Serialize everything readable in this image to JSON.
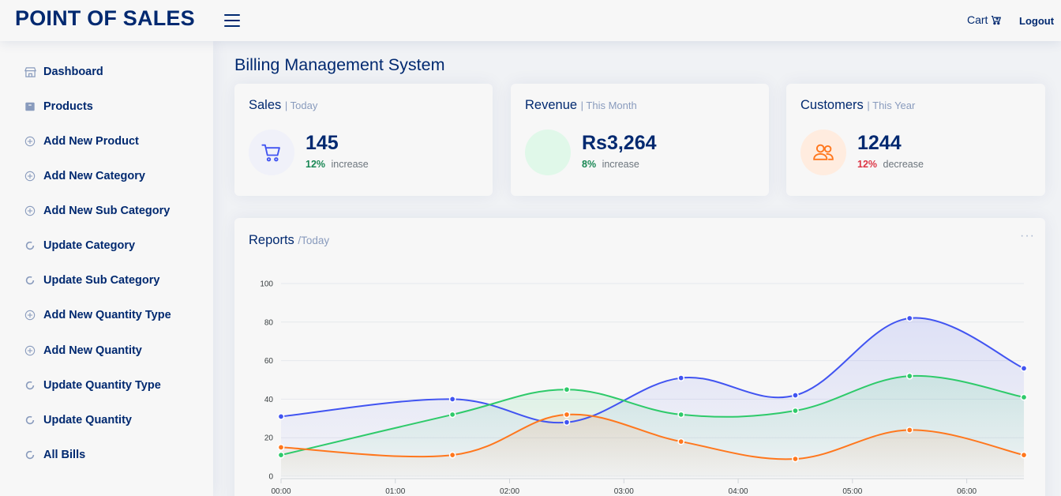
{
  "header": {
    "logo": "POINT OF SALES",
    "cart_label": "Cart",
    "logout_label": "Logout"
  },
  "sidebar": {
    "items": [
      {
        "label": "Dashboard",
        "icon": "grid-icon"
      },
      {
        "label": "Products",
        "icon": "box-icon"
      },
      {
        "label": "Add New Product",
        "icon": "plus-circle-icon"
      },
      {
        "label": "Add New Category",
        "icon": "plus-circle-icon"
      },
      {
        "label": "Add New Sub Category",
        "icon": "plus-circle-icon"
      },
      {
        "label": "Update Category",
        "icon": "refresh-icon"
      },
      {
        "label": "Update Sub Category",
        "icon": "refresh-icon"
      },
      {
        "label": "Add New Quantity Type",
        "icon": "plus-circle-icon"
      },
      {
        "label": "Add New Quantity",
        "icon": "plus-circle-icon"
      },
      {
        "label": "Update Quantity Type",
        "icon": "refresh-icon"
      },
      {
        "label": "Update Quantity",
        "icon": "refresh-icon"
      },
      {
        "label": "All Bills",
        "icon": "refresh-icon"
      }
    ]
  },
  "main": {
    "page_title": "Billing Management System",
    "cards": {
      "sales": {
        "title": "Sales",
        "subtitle": "| Today",
        "value": "145",
        "pct": "12%",
        "trend": "increase",
        "pct_color": "#198754"
      },
      "revenue": {
        "title": "Revenue",
        "subtitle": "| This Month",
        "value": "Rs3,264",
        "pct": "8%",
        "trend": "increase",
        "pct_color": "#198754"
      },
      "customers": {
        "title": "Customers",
        "subtitle": "| This Year",
        "value": "1244",
        "pct": "12%",
        "trend": "decrease",
        "pct_color": "#dc3545"
      }
    },
    "reports": {
      "title": "Reports",
      "subtitle": "/Today",
      "menu": "···"
    }
  },
  "colors": {
    "brand": "#012970",
    "blue": "#4154f1",
    "green": "#2eca6a",
    "orange": "#ff771d"
  },
  "chart_data": {
    "type": "area",
    "x": [
      "00:00",
      "01:00",
      "02:00",
      "03:00",
      "04:00",
      "05:00",
      "06:00"
    ],
    "x_values": [
      0,
      1.5,
      2.5,
      3.5,
      4.5,
      5.5,
      6.5
    ],
    "x_ticks": [
      0,
      1,
      2,
      3,
      4,
      5,
      6
    ],
    "y_ticks": [
      0,
      20,
      40,
      60,
      80,
      100
    ],
    "ylim": [
      0,
      100
    ],
    "grid": true,
    "series": [
      {
        "color": "#4154f1",
        "values": [
          31,
          40,
          28,
          51,
          42,
          82,
          56
        ]
      },
      {
        "color": "#2eca6a",
        "values": [
          11,
          32,
          45,
          32,
          34,
          52,
          41
        ]
      },
      {
        "color": "#ff771d",
        "values": [
          15,
          11,
          32,
          18,
          9,
          24,
          11
        ]
      }
    ]
  }
}
